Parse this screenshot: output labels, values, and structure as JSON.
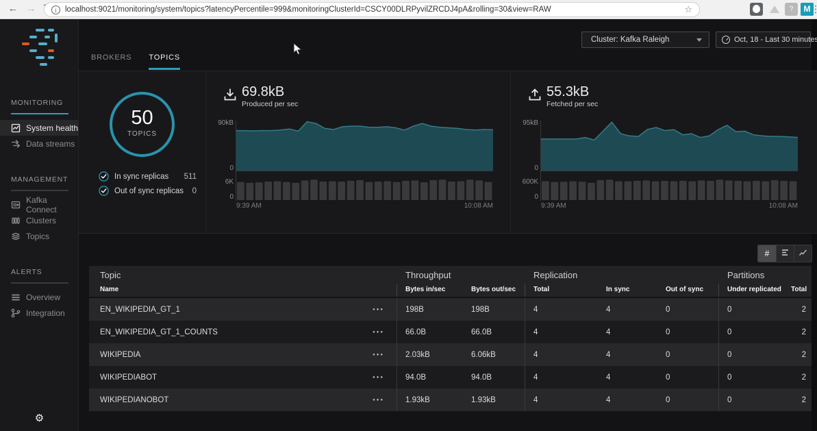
{
  "browser": {
    "url": "localhost:9021/monitoring/system/topics?latencyPercentile=999&monitoringClusterId=CSCY00DLRPyvilZRCDJ4pA&rolling=30&view=RAW",
    "m_badge": "M",
    "clipboard_badge": "?",
    "extensions": [
      "appearance-icon",
      "drive-icon",
      "clipboard-icon",
      "m-extension-icon"
    ]
  },
  "sidebar": {
    "sections": [
      {
        "label": "MONITORING",
        "items": [
          {
            "label": "System health",
            "icon": "system-health-icon",
            "active": true
          },
          {
            "label": "Data streams",
            "icon": "data-streams-icon",
            "active": false
          }
        ]
      },
      {
        "label": "MANAGEMENT",
        "items": [
          {
            "label": "Kafka Connect",
            "icon": "kafka-connect-icon",
            "active": false
          },
          {
            "label": "Clusters",
            "icon": "clusters-icon",
            "active": false
          },
          {
            "label": "Topics",
            "icon": "topics-icon",
            "active": false
          }
        ]
      },
      {
        "label": "ALERTS",
        "items": [
          {
            "label": "Overview",
            "icon": "overview-icon",
            "active": false
          },
          {
            "label": "Integration",
            "icon": "integration-icon",
            "active": false
          }
        ]
      }
    ]
  },
  "header": {
    "tabs": [
      {
        "label": "BROKERS",
        "active": false
      },
      {
        "label": "TOPICS",
        "active": true
      }
    ],
    "cluster_selector": "Cluster: Kafka Raleigh",
    "date_range": "Oct, 18 - Last 30 minutes"
  },
  "overview": {
    "topics_count": "50",
    "topics_label": "TOPICS",
    "legend": [
      {
        "label": "In sync replicas",
        "value": "511",
        "checked": true
      },
      {
        "label": "Out of sync replicas",
        "value": "0",
        "checked": true
      }
    ]
  },
  "colors": {
    "accent": "#2f9db8",
    "area_fill": "#1e4a53",
    "area_stroke": "#357b87",
    "bar_fill": "#3a3a3c"
  },
  "chart_data": [
    {
      "type": "area",
      "title": "69.8kB",
      "subtitle": "Produced per sec",
      "icon": "download-icon",
      "x_start_label": "9:39 AM",
      "x_end_label": "10:08 AM",
      "area": {
        "ymax": 90,
        "ymax_label": "90kB",
        "ymin_label": "0",
        "unit": "kB",
        "values": [
          72,
          72,
          71.5,
          72,
          72,
          73,
          75,
          71,
          88,
          85,
          76,
          74,
          79,
          80,
          80,
          78,
          78,
          79,
          77,
          73,
          80,
          85,
          80,
          78,
          77,
          76,
          74,
          73,
          74,
          73.5
        ]
      },
      "bars": {
        "ymax": 6,
        "ymax_label": "6K",
        "ymin_label": "0",
        "values": [
          4.8,
          4.6,
          4.7,
          4.9,
          5,
          4.8,
          4.6,
          5.2,
          5.4,
          4.9,
          5,
          4.9,
          5.1,
          5.3,
          4.8,
          4.9,
          5,
          4.8,
          5.1,
          5.2,
          4.7,
          5.3,
          5.4,
          4.9,
          5,
          5.4,
          5.2,
          4.8
        ]
      }
    },
    {
      "type": "area",
      "title": "55.3kB",
      "subtitle": "Fetched per sec",
      "icon": "upload-icon",
      "x_start_label": "9:39 AM",
      "x_end_label": "10:08 AM",
      "area": {
        "ymax": 95,
        "ymax_label": "95kB",
        "ymin_label": "0",
        "unit": "kB",
        "values": [
          60,
          60,
          60,
          60,
          60,
          63,
          58,
          75,
          92,
          70,
          66,
          65,
          78,
          82,
          76,
          78,
          68,
          70,
          63,
          66,
          78,
          86,
          74,
          75,
          68,
          66,
          65,
          65,
          64,
          63
        ]
      },
      "bars": {
        "ymax": 600,
        "ymax_label": "600K",
        "ymin_label": "0",
        "values": [
          500,
          480,
          490,
          500,
          490,
          460,
          530,
          540,
          500,
          500,
          510,
          520,
          500,
          510,
          500,
          510,
          500,
          520,
          510,
          540,
          520,
          510,
          500,
          510,
          500,
          530,
          510,
          500
        ]
      }
    }
  ],
  "view_toggles": [
    {
      "label": "#",
      "kind": "number-view",
      "active": true
    },
    {
      "label": "",
      "kind": "bars-view",
      "active": false
    },
    {
      "label": "",
      "kind": "line-view",
      "active": false
    }
  ],
  "table": {
    "header_groups": [
      {
        "label": "Topic",
        "subs": [
          "Name"
        ]
      },
      {
        "label": "Throughput",
        "subs": [
          "Bytes in/sec",
          "Bytes out/sec"
        ]
      },
      {
        "label": "Replication",
        "subs": [
          "Total",
          "In sync",
          "Out of sync"
        ]
      },
      {
        "label": "Partitions",
        "subs": [
          "Under replicated",
          "Total"
        ]
      }
    ],
    "rows": [
      {
        "name": "EN_WIKIPEDIA_GT_1",
        "bytes_in": "198B",
        "bytes_out": "198B",
        "repl_total": "4",
        "in_sync": "4",
        "out_of_sync": "0",
        "under_replicated": "0",
        "part_total": "2"
      },
      {
        "name": "EN_WIKIPEDIA_GT_1_COUNTS",
        "bytes_in": "66.0B",
        "bytes_out": "66.0B",
        "repl_total": "4",
        "in_sync": "4",
        "out_of_sync": "0",
        "under_replicated": "0",
        "part_total": "2"
      },
      {
        "name": "WIKIPEDIA",
        "bytes_in": "2.03kB",
        "bytes_out": "6.06kB",
        "repl_total": "4",
        "in_sync": "4",
        "out_of_sync": "0",
        "under_replicated": "0",
        "part_total": "2"
      },
      {
        "name": "WIKIPEDIABOT",
        "bytes_in": "94.0B",
        "bytes_out": "94.0B",
        "repl_total": "4",
        "in_sync": "4",
        "out_of_sync": "0",
        "under_replicated": "0",
        "part_total": "2"
      },
      {
        "name": "WIKIPEDIANOBOT",
        "bytes_in": "1.93kB",
        "bytes_out": "1.93kB",
        "repl_total": "4",
        "in_sync": "4",
        "out_of_sync": "0",
        "under_replicated": "0",
        "part_total": "2"
      }
    ]
  }
}
